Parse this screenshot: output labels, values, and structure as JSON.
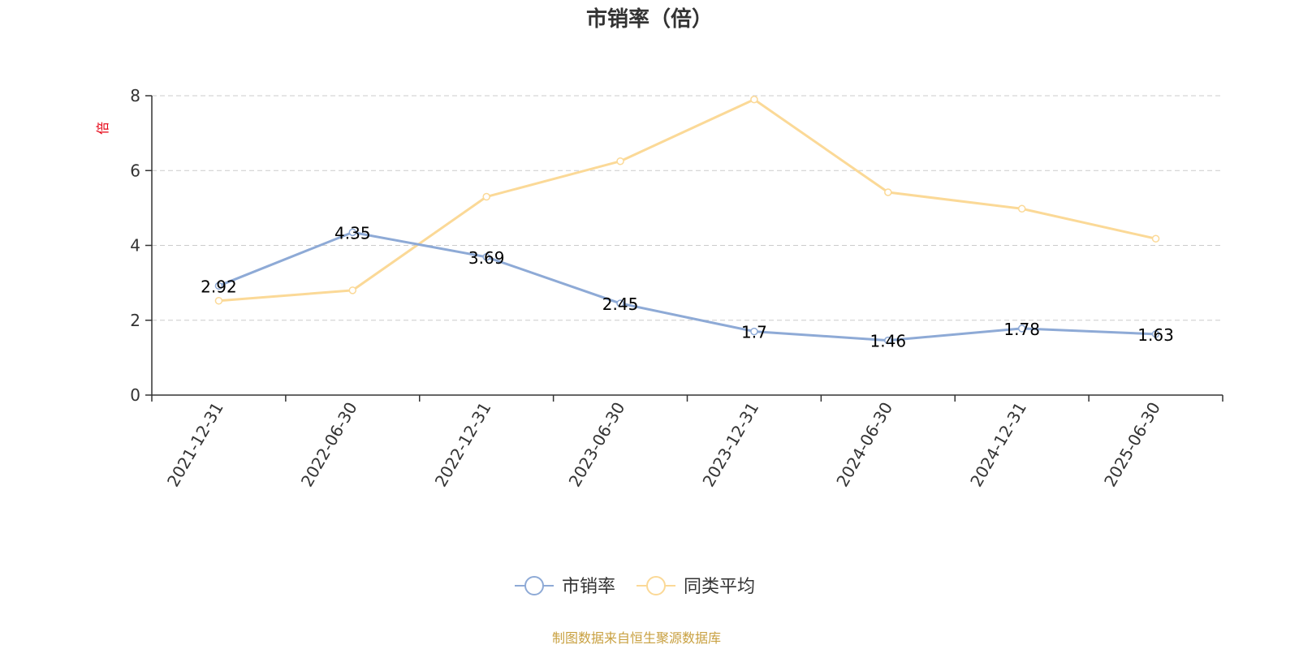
{
  "chart_data": {
    "type": "line",
    "title": "市销率（倍）",
    "ylabel": "倍",
    "xlabel": "",
    "categories": [
      "2021-12-31",
      "2022-06-30",
      "2022-12-31",
      "2023-06-30",
      "2023-12-31",
      "2024-06-30",
      "2024-12-31",
      "2025-06-30"
    ],
    "ylim": [
      0,
      8
    ],
    "yticks": [
      "0",
      "2",
      "4",
      "6",
      "8"
    ],
    "grid": "horizontal dashed",
    "legend_position": "bottom-center",
    "series": [
      {
        "name": "市销率",
        "color": "#8eaad6",
        "values": [
          2.92,
          4.35,
          3.69,
          2.45,
          1.7,
          1.46,
          1.78,
          1.63
        ],
        "data_labels": [
          "2.92",
          "4.35",
          "3.69",
          "2.45",
          "1.7",
          "1.46",
          "1.78",
          "1.63"
        ]
      },
      {
        "name": "同类平均",
        "color": "#fbd997",
        "values": [
          2.52,
          2.8,
          5.3,
          6.25,
          7.9,
          5.42,
          4.98,
          4.18
        ]
      }
    ]
  },
  "source_note": "制图数据来自恒生聚源数据库"
}
